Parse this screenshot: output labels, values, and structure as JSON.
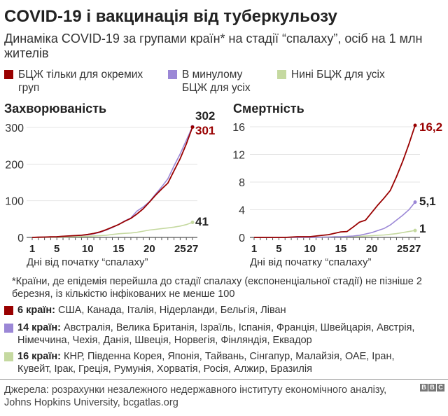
{
  "title": "COVID-19 і вакцинація від туберкульозу",
  "subtitle": "Динаміка COVID-19 за групами країн* на стадії “спалаху”, осіб на 1 млн жителів",
  "legend": [
    {
      "label": "БЦЖ тільки для окремих груп",
      "color": "#990000"
    },
    {
      "label": "В минулому БЦЖ для усіх",
      "color": "#9b87d6"
    },
    {
      "label": "Нині БЦЖ для усіх",
      "color": "#c5d9a0"
    }
  ],
  "chart_data": [
    {
      "type": "line",
      "title": "Захворюваність",
      "xlabel": "Дні від початку “спалаху”",
      "ylabel": "",
      "xlim": [
        1,
        27
      ],
      "ylim": [
        0,
        300
      ],
      "xticks": [
        "1",
        "5",
        "10",
        "15",
        "20",
        "25",
        "27"
      ],
      "yticks": [
        "0",
        "100",
        "200",
        "300"
      ],
      "grid": true,
      "x": [
        1,
        2,
        3,
        4,
        5,
        6,
        7,
        8,
        9,
        10,
        11,
        12,
        13,
        14,
        15,
        16,
        17,
        18,
        19,
        20,
        21,
        22,
        23,
        24,
        25,
        26,
        27
      ],
      "series": [
        {
          "values": [
            0,
            0.5,
            1,
            1.5,
            2,
            3,
            4,
            5,
            6,
            8,
            11,
            15,
            21,
            28,
            35,
            44,
            52,
            64,
            78,
            96,
            115,
            132,
            148,
            182,
            215,
            255,
            301
          ],
          "color": "#990000",
          "end_label": "301"
        },
        {
          "values": [
            0,
            0.5,
            1,
            1.5,
            2,
            3,
            4,
            5,
            6,
            7,
            10,
            14,
            20,
            27,
            35,
            45,
            53,
            72,
            83,
            97,
            118,
            138,
            160,
            195,
            228,
            265,
            302
          ],
          "color": "#9b87d6",
          "end_label": "302"
        },
        {
          "values": [
            0,
            0,
            0.5,
            0.5,
            1,
            1,
            1.5,
            2,
            2.5,
            3,
            4,
            5,
            6,
            8,
            10,
            11,
            12,
            14,
            17,
            20,
            22,
            24,
            26,
            28,
            31,
            35,
            41
          ],
          "color": "#c5d9a0",
          "end_label": "41"
        }
      ]
    },
    {
      "type": "line",
      "title": "Смертність",
      "xlabel": "Дні від початку “спалаху”",
      "ylabel": "",
      "xlim": [
        1,
        27
      ],
      "ylim": [
        0,
        16
      ],
      "xticks": [
        "1",
        "5",
        "10",
        "15",
        "20",
        "25",
        "27"
      ],
      "yticks": [
        "0",
        "4",
        "8",
        "12",
        "16"
      ],
      "grid": true,
      "x": [
        1,
        2,
        3,
        4,
        5,
        6,
        7,
        8,
        9,
        10,
        11,
        12,
        13,
        14,
        15,
        16,
        17,
        18,
        19,
        20,
        21,
        22,
        23,
        24,
        25,
        26,
        27
      ],
      "series": [
        {
          "values": [
            0,
            0,
            0,
            0,
            0,
            0,
            0.05,
            0.1,
            0.1,
            0.1,
            0.2,
            0.3,
            0.4,
            0.6,
            0.8,
            0.85,
            1.5,
            2.2,
            2.5,
            3.6,
            4.7,
            5.7,
            6.8,
            8.8,
            11,
            13.5,
            16.2
          ],
          "color": "#990000",
          "end_label": "16,2"
        },
        {
          "values": [
            0,
            0,
            0,
            0,
            0,
            0,
            0,
            0,
            0,
            0,
            0,
            0.05,
            0.05,
            0.1,
            0.1,
            0.15,
            0.2,
            0.3,
            0.5,
            0.7,
            1.0,
            1.3,
            1.8,
            2.5,
            3.2,
            4.0,
            5.1
          ],
          "color": "#9b87d6",
          "end_label": "5,1"
        },
        {
          "values": [
            0,
            0,
            0,
            0,
            0,
            0,
            0,
            0.05,
            0.05,
            0.05,
            0.05,
            0.05,
            0.05,
            0.1,
            0.1,
            0.1,
            0.15,
            0.15,
            0.2,
            0.25,
            0.3,
            0.35,
            0.45,
            0.55,
            0.7,
            0.85,
            1.0
          ],
          "color": "#c5d9a0",
          "end_label": "1"
        }
      ]
    }
  ],
  "footnote": "*Країни, де епідемія перейшла до стадії спалаху (експоненціальної стадії) не пізніше 2 березня, із кількістю інфікованих не менше 100",
  "groups": [
    {
      "head": "6 країн:",
      "text": " США, Канада, Італія, Нідерланди, Бельгія, Ліван",
      "color": "#990000"
    },
    {
      "head": "14 країн:",
      "text": " Австралія, Велика Британія, Ізраїль, Іспанія, Франція, Швейцарія, Австрія, Німеччина, Чехія, Данія, Швеція, Норвегія, Фінляндія, Еквадор",
      "color": "#9b87d6"
    },
    {
      "head": "16 країн:",
      "text": " КНР, Південна Корея, Японія, Тайвань, Сінгапур, Малайзія, ОАЕ, Іран, Кувейт, Ірак, Греція, Румунія, Хорватія, Росія, Алжир, Бразилія",
      "color": "#c5d9a0"
    }
  ],
  "source": "Джерела: розрахунки незалежного недержавного інституту економічного аналізу, Johns Hopkins University, bcgatlas.org",
  "logo": [
    "B",
    "B",
    "C"
  ]
}
